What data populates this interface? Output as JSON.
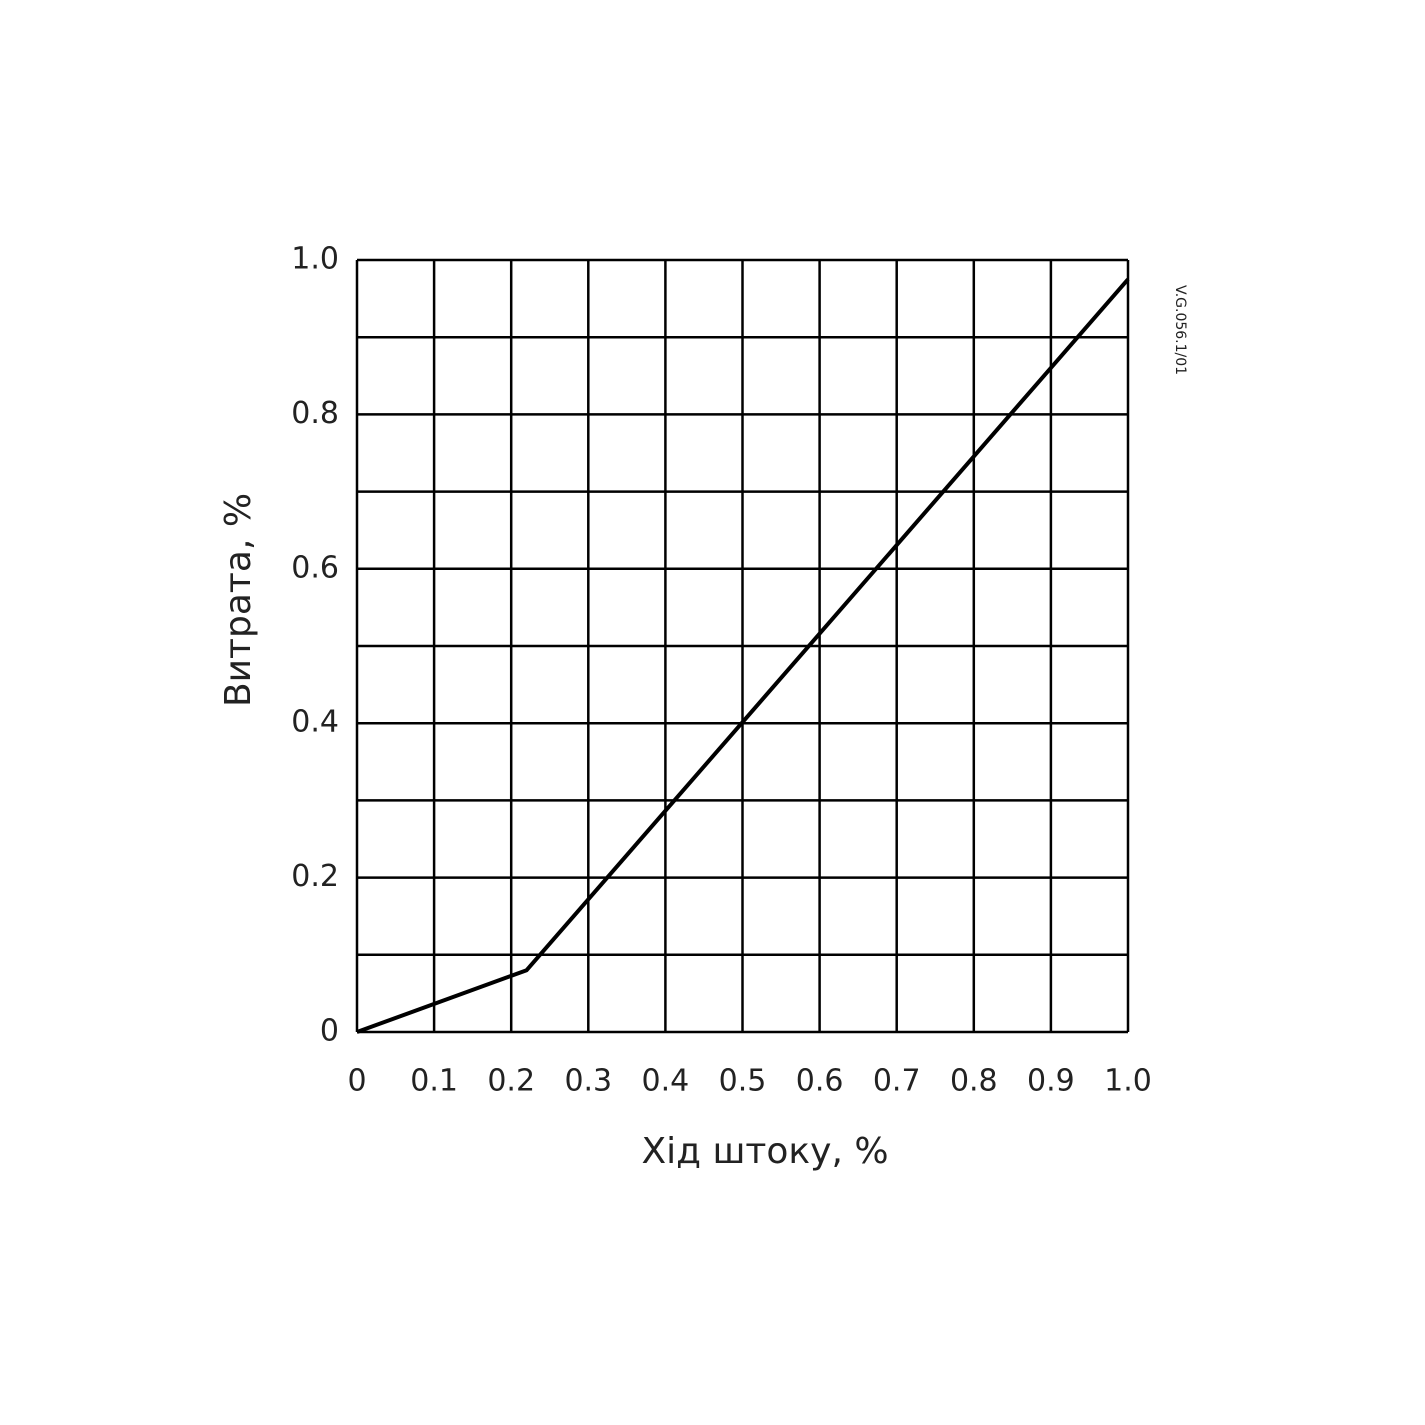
{
  "chart_data": {
    "type": "line",
    "x_label": "Хід штоку, %",
    "y_label": "Витрата, %",
    "annotation": "V.G.056.1/01",
    "x": [
      0,
      0.22,
      1
    ],
    "series": [
      {
        "color": "#000000",
        "values": [
          0,
          0.08,
          0.975
        ]
      }
    ],
    "xlim": [
      0,
      1
    ],
    "ylim": [
      0,
      1
    ],
    "xticks": [
      0,
      0.1,
      0.2,
      0.3,
      0.4,
      0.5,
      0.6,
      0.7,
      0.8,
      0.9,
      {
        "value": 1,
        "label": "1.0"
      }
    ],
    "yticks": [
      0,
      0.2,
      0.4,
      0.6,
      0.8,
      {
        "value": 1,
        "label": "1.0"
      }
    ],
    "yminorticks": [
      0.1,
      0.3,
      0.5,
      0.7,
      0.9
    ],
    "grid": true
  }
}
